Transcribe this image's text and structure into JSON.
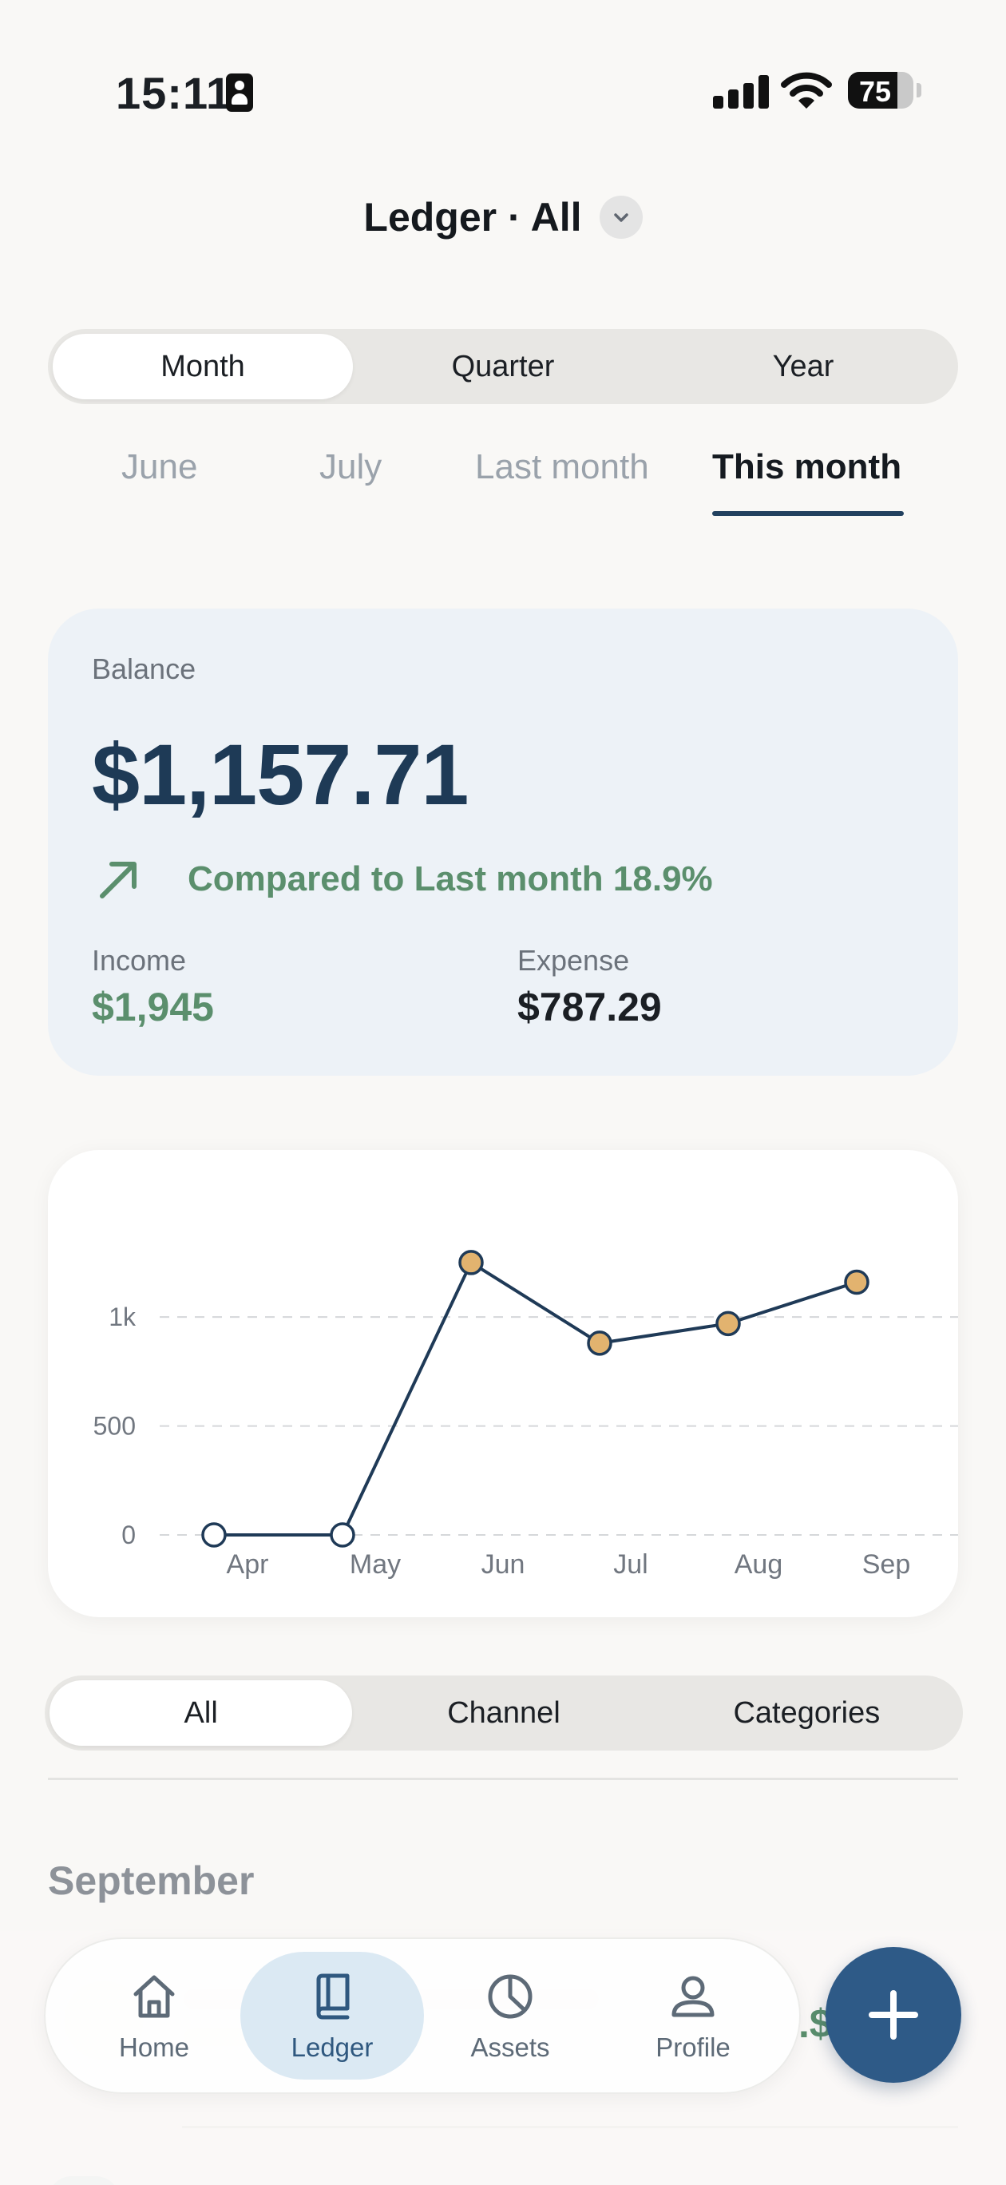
{
  "status_bar": {
    "time": "15:11",
    "battery": "75",
    "battery_level": 0.75
  },
  "header": {
    "title": "Ledger · All"
  },
  "range_tabs": [
    {
      "label": "Month",
      "active": true
    },
    {
      "label": "Quarter",
      "active": false
    },
    {
      "label": "Year",
      "active": false
    }
  ],
  "period_tabs": [
    {
      "label": "June",
      "active": false
    },
    {
      "label": "July",
      "active": false
    },
    {
      "label": "Last month",
      "active": false
    },
    {
      "label": "This month",
      "active": true
    }
  ],
  "balance": {
    "label": "Balance",
    "amount": "$1,157.71",
    "comparison": "Compared to Last month 18.9%",
    "income_label": "Income",
    "income_value": "$1,945",
    "expense_label": "Expense",
    "expense_value": "$787.29"
  },
  "chart_data": {
    "type": "line",
    "categories": [
      "Apr",
      "May",
      "Jun",
      "Jul",
      "Aug",
      "Sep"
    ],
    "values": [
      0,
      0,
      1250,
      880,
      970,
      1160
    ],
    "ylim": [
      0,
      1400
    ],
    "yticks": [
      0,
      500,
      1000
    ],
    "ytick_labels": [
      "0",
      "500",
      "1k"
    ],
    "grid": true,
    "colors": {
      "line": "#1f3a57",
      "point_with_value": "#e2b36f",
      "point_zero": "#ffffff",
      "grid": "#d5d7da",
      "tick_text": "#717780"
    }
  },
  "breakdown_tabs": [
    {
      "label": "All",
      "active": true
    },
    {
      "label": "Channel",
      "active": false
    },
    {
      "label": "Categories",
      "active": false
    }
  ],
  "section": {
    "title": "September",
    "partial_amount": ".$"
  },
  "tab_bar": [
    {
      "label": "Home",
      "icon": "home-icon",
      "active": false
    },
    {
      "label": "Ledger",
      "icon": "book-icon",
      "active": true
    },
    {
      "label": "Assets",
      "icon": "pie-chart-icon",
      "active": false
    },
    {
      "label": "Profile",
      "icon": "person-icon",
      "active": false
    }
  ],
  "fab": {
    "icon": "plus-icon"
  },
  "colors": {
    "accent": "#2e5a87",
    "positive": "#5b8f6d",
    "balance_text": "#1e3a56"
  }
}
